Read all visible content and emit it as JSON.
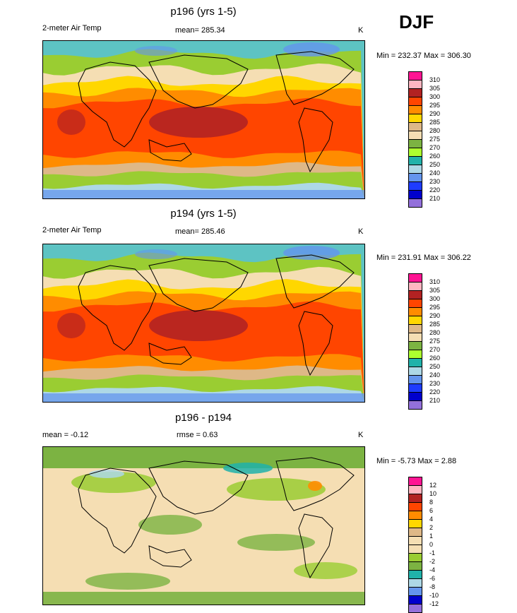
{
  "season": "DJF",
  "panels": [
    {
      "title": "p196 (yrs 1-5)",
      "variable": "2-meter Air Temp",
      "stat1": "mean= 285.34",
      "stat2": "",
      "units": "K",
      "minmax": "Min = 232.37 Max = 306.30",
      "kind": "abs"
    },
    {
      "title": "p194 (yrs 1-5)",
      "variable": "2-meter Air Temp",
      "stat1": "mean= 285.46",
      "stat2": "",
      "units": "K",
      "minmax": "Min = 231.91 Max = 306.22",
      "kind": "abs"
    },
    {
      "title": "p196 - p194",
      "variable": "",
      "stat1": "mean =  -0.12",
      "stat2": "rmse =   0.63",
      "units": "K",
      "minmax": "Min =  -5.73 Max =   2.88",
      "kind": "diff"
    }
  ],
  "colorbars": {
    "abs": {
      "labels": [
        "310",
        "305",
        "300",
        "295",
        "290",
        "285",
        "280",
        "275",
        "270",
        "260",
        "250",
        "240",
        "230",
        "220",
        "210"
      ],
      "colors": [
        "#ff1493",
        "#ffb6c1",
        "#b22222",
        "#ff4500",
        "#ff8c00",
        "#ffd700",
        "#deb887",
        "#f5deb3",
        "#7cb342",
        "#adff2f",
        "#20b2aa",
        "#add8e6",
        "#6495ed",
        "#1e3cff",
        "#0000cd",
        "#9370db"
      ]
    },
    "diff": {
      "labels": [
        "12",
        "10",
        "8",
        "6",
        "4",
        "2",
        "1",
        "0",
        "-1",
        "-2",
        "-4",
        "-6",
        "-8",
        "-10",
        "-12"
      ],
      "colors": [
        "#ff1493",
        "#ffb6c1",
        "#b22222",
        "#ff4500",
        "#ff8c00",
        "#ffd700",
        "#deb887",
        "#f5deb3",
        "#f5deb3",
        "#9acd32",
        "#7cb342",
        "#20b2aa",
        "#add8e6",
        "#6495ed",
        "#0000cd",
        "#9370db"
      ]
    }
  }
}
